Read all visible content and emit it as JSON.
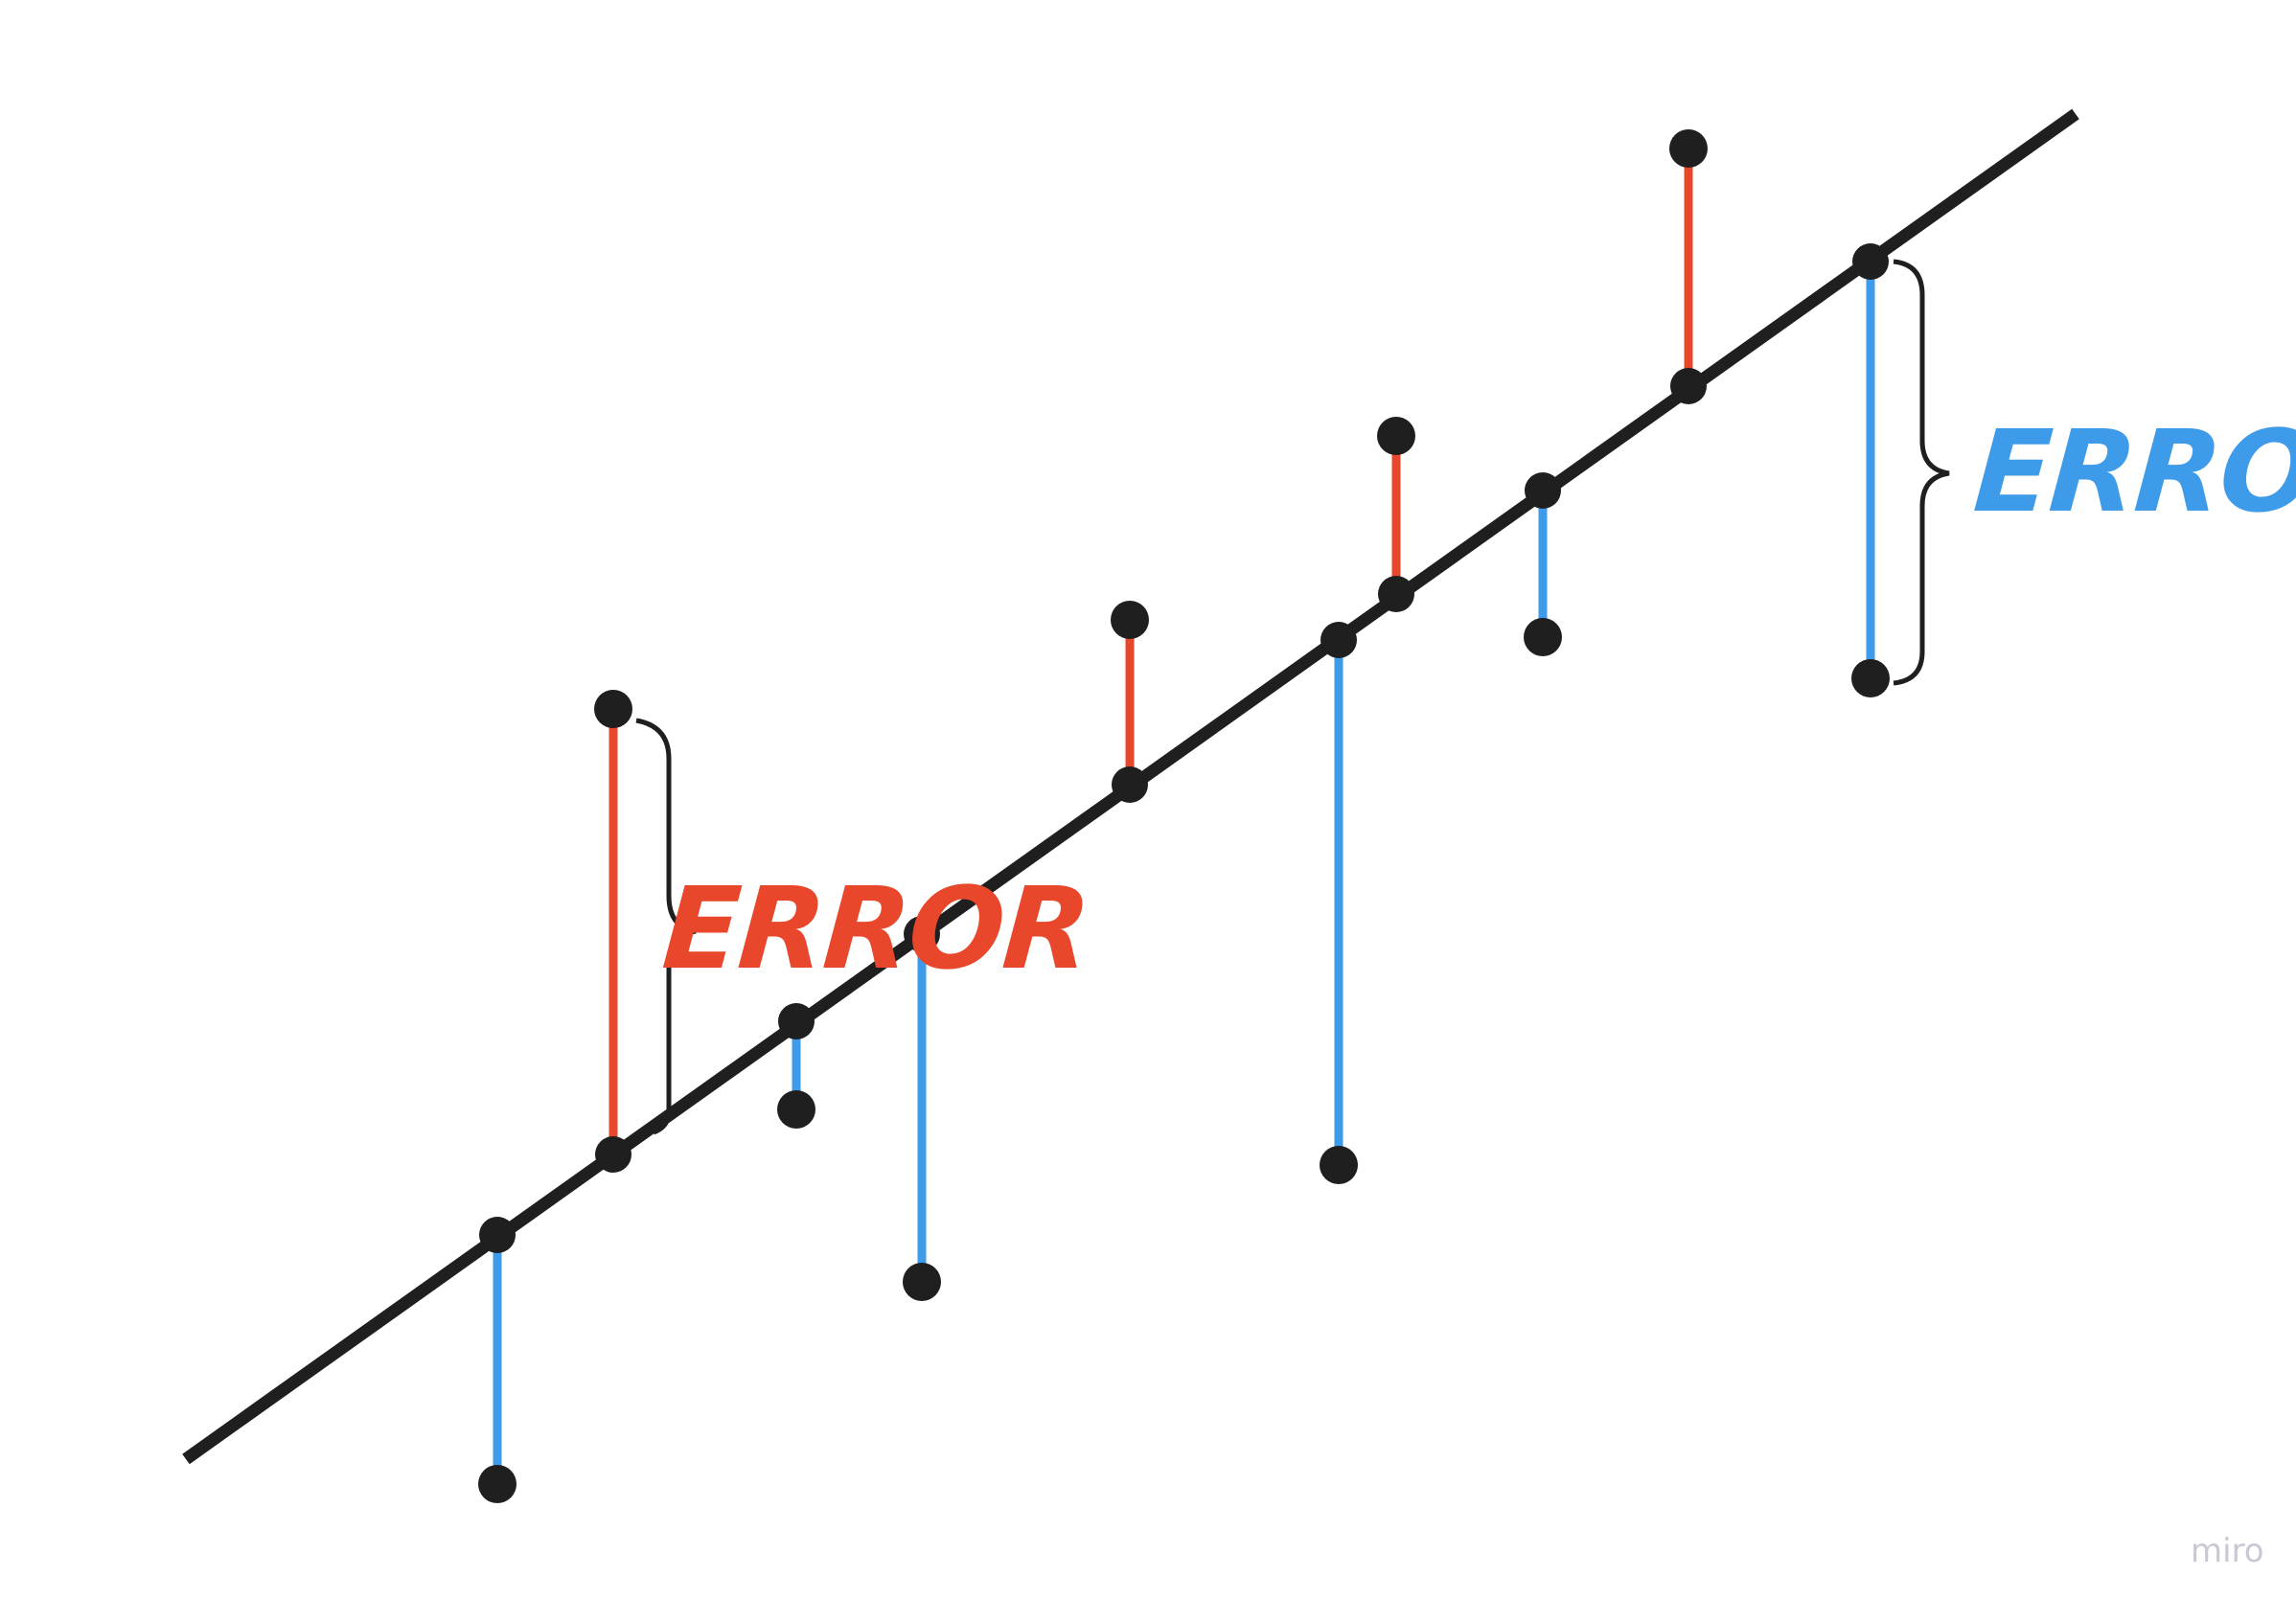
{
  "labels": {
    "error_left": "ERROR",
    "error_right": "ERROR",
    "watermark": "miro"
  },
  "colors": {
    "line": "#1f1f1f",
    "positive_error": "#e8472b",
    "negative_error": "#3d9be9",
    "bracket": "#1f1f1f",
    "watermark": "#c9c9d6"
  },
  "icons": {
    "data_point": "filled-circle",
    "brace": "curly-brace"
  }
}
